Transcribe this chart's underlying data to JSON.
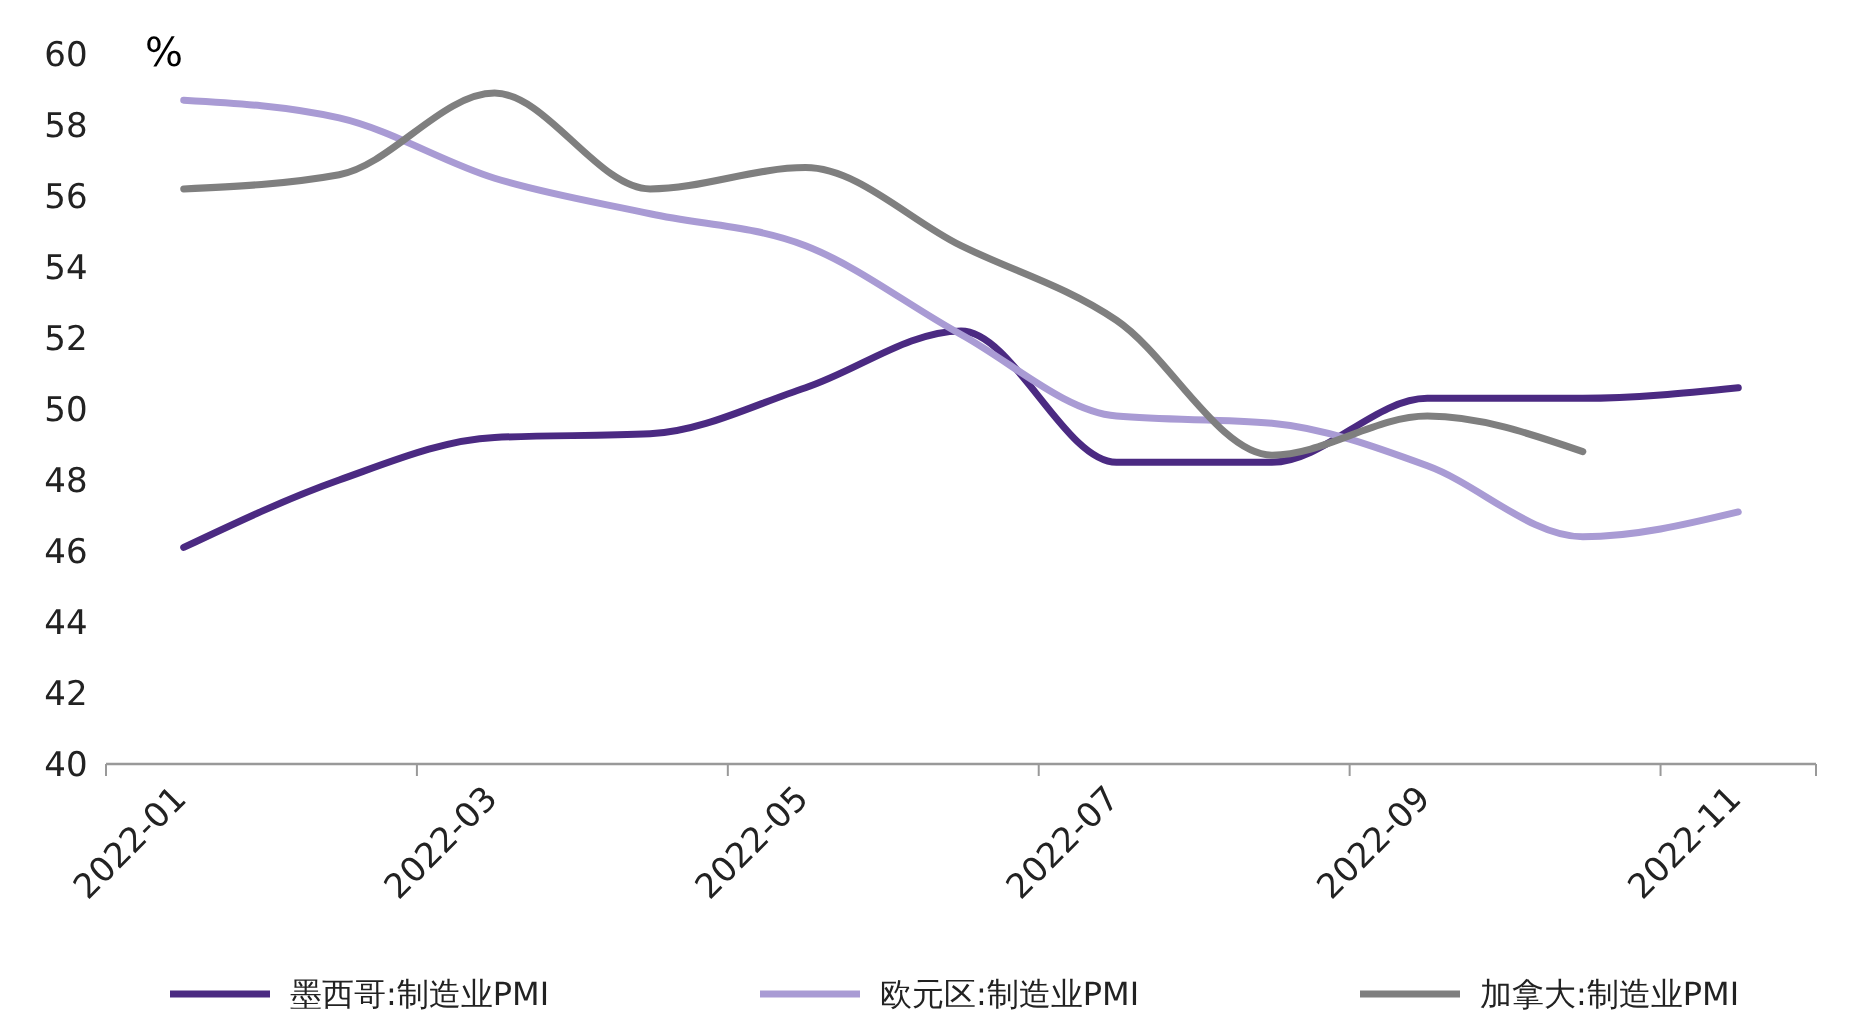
{
  "chart_data": {
    "type": "line",
    "ylabel": "%",
    "categories": [
      "2022-01",
      null,
      "2022-03",
      null,
      "2022-05",
      null,
      "2022-07",
      null,
      "2022-09",
      null,
      "2022-11"
    ],
    "ylim": [
      40,
      60
    ],
    "yticks": [
      40,
      42,
      44,
      46,
      48,
      50,
      52,
      54,
      56,
      58,
      60
    ],
    "grid": false,
    "legend": "bottom",
    "marker": "none",
    "line_style": "solid",
    "series": [
      {
        "name": "墨西哥:制造业PMI",
        "color": "#4b2a82",
        "values": [
          46.1,
          48.0,
          49.2,
          49.3,
          50.6,
          52.2,
          48.5,
          48.5,
          50.3,
          50.3,
          50.6
        ]
      },
      {
        "name": "欧元区:制造业PMI",
        "color": "#a99bd4",
        "values": [
          58.7,
          58.2,
          56.5,
          55.5,
          54.6,
          52.1,
          49.8,
          49.6,
          48.4,
          46.4,
          47.1
        ]
      },
      {
        "name": "加拿大:制造业PMI",
        "color": "#7f7f7f",
        "values": [
          56.2,
          56.6,
          58.9,
          56.2,
          56.8,
          54.6,
          52.5,
          48.7,
          49.8,
          48.8,
          null
        ]
      }
    ]
  }
}
